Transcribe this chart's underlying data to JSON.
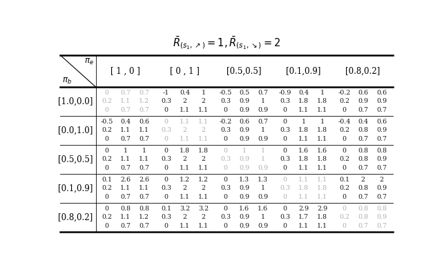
{
  "title": "$\\bar{R}_{(s_1,\\nearrow)}=1, \\bar{R}_{(s_1,\\searrow)}=2$",
  "col_headers": [
    "[ 1 , 0 ]",
    "[ 0 , 1 ]",
    "[0.5,0.5]",
    "[0.1,0.9]",
    "[0.8,0.2]"
  ],
  "row_headers": [
    "[1.0,0.0]",
    "[0.0,1.0]",
    "[0.5,0.5]",
    "[0.1,0.9]",
    "[0.8,0.2]"
  ],
  "pi_e_label": "$\\pi_e$",
  "pi_b_label": "$\\pi_b$",
  "cell_data": [
    [
      [
        "0",
        "0.7",
        "0.7",
        "-1",
        "0.4",
        "1",
        "-0.5",
        "0.5",
        "0.7",
        "-0.9",
        "0.4",
        "1",
        "-0.2",
        "0.6",
        "0.6"
      ],
      [
        "0.2",
        "1.1",
        "1.2",
        "0.3",
        "2",
        "2",
        "0.3",
        "0.9",
        "1",
        "0.3",
        "1.8",
        "1.8",
        "0.2",
        "0.9",
        "0.9"
      ],
      [
        "0",
        "0.7",
        "0.7",
        "0",
        "1.1",
        "1.1",
        "0",
        "0.9",
        "0.9",
        "0",
        "1.1",
        "1.1",
        "0",
        "0.7",
        "0.7"
      ]
    ],
    [
      [
        "-0.5",
        "0.4",
        "0.6",
        "0",
        "1.1",
        "1.1",
        "-0.2",
        "0.6",
        "0.7",
        "0",
        "1",
        "1",
        "-0.4",
        "0.4",
        "0.6"
      ],
      [
        "0.2",
        "1.1",
        "1.1",
        "0.3",
        "2",
        "2",
        "0.3",
        "0.9",
        "1",
        "0.3",
        "1.8",
        "1.8",
        "0.2",
        "0.8",
        "0.9"
      ],
      [
        "0",
        "0.7",
        "0.7",
        "0",
        "1.1",
        "1.1",
        "0",
        "0.9",
        "0.9",
        "0",
        "1.1",
        "1.1",
        "0",
        "0.7",
        "0.7"
      ]
    ],
    [
      [
        "0",
        "1",
        "1",
        "0",
        "1.8",
        "1.8",
        "0",
        "1",
        "1",
        "0",
        "1.6",
        "1.6",
        "0",
        "0.8",
        "0.8"
      ],
      [
        "0.2",
        "1.1",
        "1.1",
        "0.3",
        "2",
        "2",
        "0.3",
        "0.9",
        "1",
        "0.3",
        "1.8",
        "1.8",
        "0.2",
        "0.8",
        "0.9"
      ],
      [
        "0",
        "0.7",
        "0.7",
        "0",
        "1.1",
        "1.1",
        "0",
        "0.9",
        "0.9",
        "0",
        "1.1",
        "1.1",
        "0",
        "0.7",
        "0.7"
      ]
    ],
    [
      [
        "0.1",
        "2.6",
        "2.6",
        "0",
        "1.2",
        "1.2",
        "0",
        "1.3",
        "1.3",
        "0",
        "1.1",
        "1.1",
        "0.1",
        "2",
        "2"
      ],
      [
        "0.2",
        "1.1",
        "1.1",
        "0.3",
        "2",
        "2",
        "0.3",
        "0.9",
        "1",
        "0.3",
        "1.8",
        "1.8",
        "0.2",
        "0.8",
        "0.9"
      ],
      [
        "0",
        "0.7",
        "0.7",
        "0",
        "1.1",
        "1.1",
        "0",
        "0.9",
        "0.9",
        "0",
        "1.1",
        "1.1",
        "0",
        "0.7",
        "0.7"
      ]
    ],
    [
      [
        "0",
        "0.8",
        "0.8",
        "0.1",
        "3.2",
        "3.2",
        "0",
        "1.6",
        "1.6",
        "0",
        "2.9",
        "2.9",
        "0",
        "0.8",
        "0.8"
      ],
      [
        "0.2",
        "1.1",
        "1.2",
        "0.3",
        "2",
        "2",
        "0.3",
        "0.9",
        "1",
        "0.3",
        "1.7",
        "1.8",
        "0.2",
        "0.8",
        "0.9"
      ],
      [
        "0",
        "0.7",
        "0.7",
        "0",
        "1.1",
        "1.1",
        "0",
        "0.9",
        "0.9",
        "0",
        "1.1",
        "1.1",
        "0",
        "0.7",
        "0.7"
      ]
    ]
  ],
  "background_color": "#ffffff",
  "text_color_normal": "#1a1a1a",
  "text_color_gray": "#b0b0b0",
  "fontsize_title": 10.5,
  "fontsize_header": 8.5,
  "fontsize_cell": 6.8
}
